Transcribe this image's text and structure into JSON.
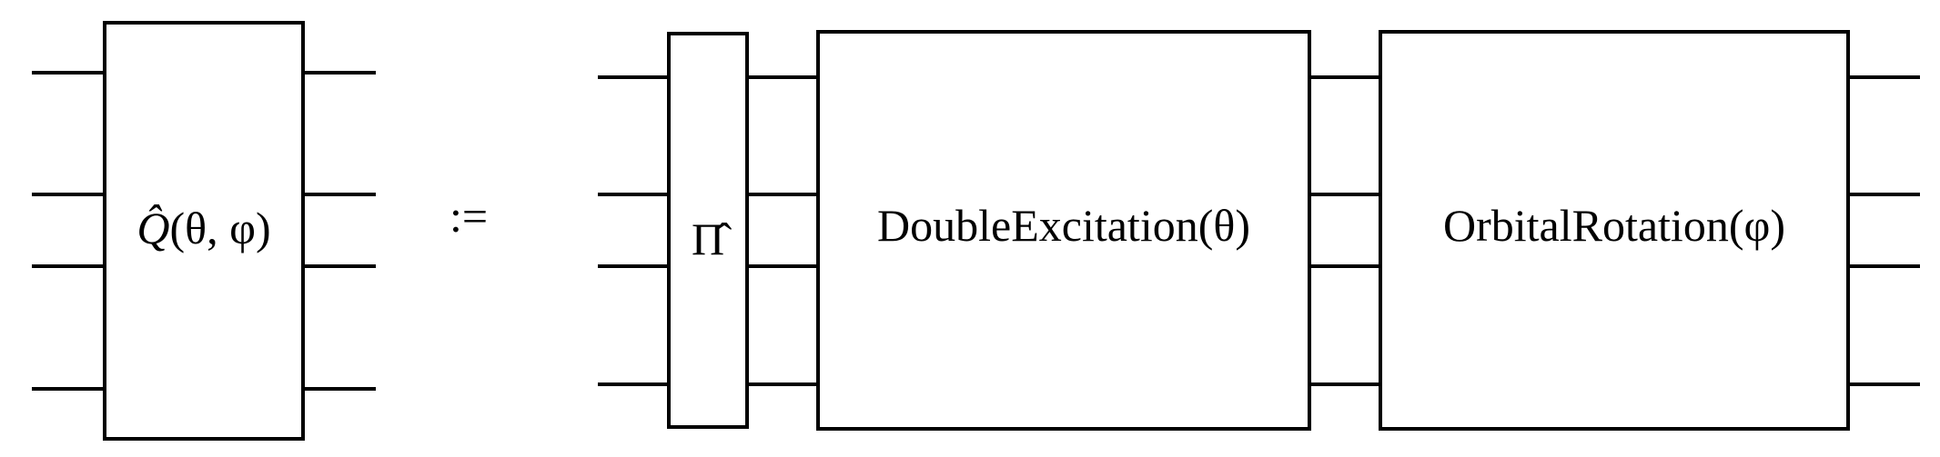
{
  "diagram": {
    "lhs_gate": {
      "symbol": "Q̂",
      "args": "(θ, φ)"
    },
    "definition_symbol": ":=",
    "rhs_gates": [
      {
        "label": "Π̂"
      },
      {
        "label": "DoubleExcitation(θ)"
      },
      {
        "label": "OrbitalRotation(φ)"
      }
    ]
  }
}
